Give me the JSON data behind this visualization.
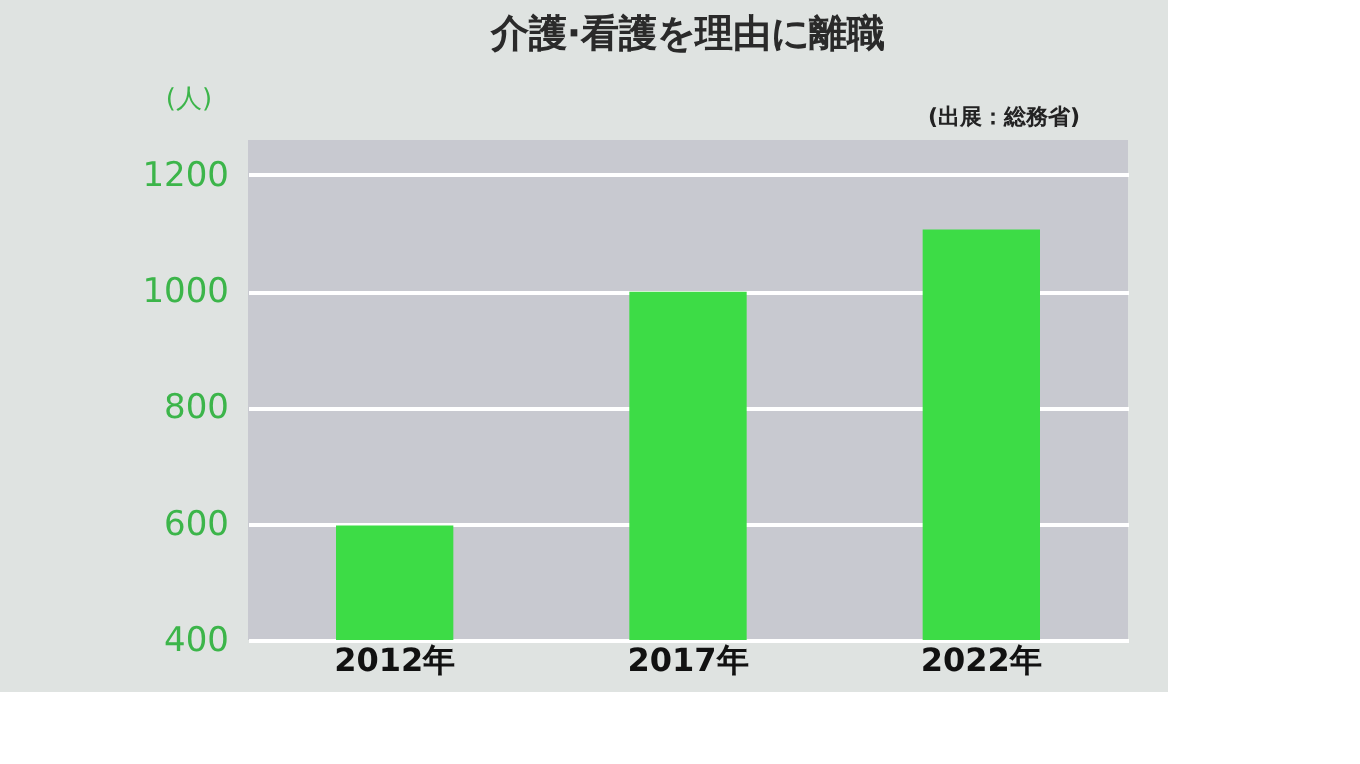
{
  "chart_data": {
    "type": "bar",
    "title": "介護·看護を理由に離職",
    "ylabel": "(人)",
    "categories": [
      "2012年",
      "2017年",
      "2022年"
    ],
    "values": [
      597,
      999,
      1106
    ],
    "color": "#3ddc46",
    "ylim": [
      400,
      1260
    ],
    "yticks": [
      400,
      600,
      800,
      1000,
      1200
    ],
    "grid": "y",
    "annotations": [
      "(出展：総務省)"
    ]
  }
}
